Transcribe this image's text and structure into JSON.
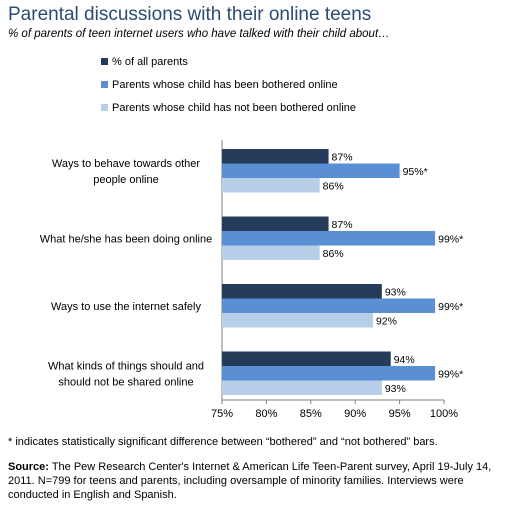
{
  "title": "Parental discussions with their online teens",
  "subtitle": "% of parents of teen internet users who have talked with their child about…",
  "footnote": "* indicates statistically significant difference between “bothered” and “not bothered” bars.",
  "source_label": "Source:",
  "source_text": "The Pew Research Center's Internet & American Life Teen-Parent survey, April 19-July 14, 2011. N=799 for teens and parents, including oversample of minority families. Interviews were conducted in English and Spanish.",
  "colors": {
    "title": "#2b4c72",
    "series": [
      "#253b5a",
      "#5b8fd4",
      "#b8cfe9"
    ]
  },
  "chart_data": {
    "type": "bar",
    "orientation": "horizontal",
    "categories": [
      [
        "Ways to behave towards other",
        "people online"
      ],
      [
        "What he/she has been doing online"
      ],
      [
        "Ways to use the internet safely"
      ],
      [
        "What kinds of things should and",
        "should not be shared online"
      ]
    ],
    "series": [
      {
        "name": "% of all parents",
        "values": [
          87,
          87,
          93,
          94
        ],
        "labels": [
          "87%",
          "87%",
          "93%",
          "94%"
        ]
      },
      {
        "name": "Parents whose child has been bothered online",
        "values": [
          95,
          99,
          99,
          99
        ],
        "labels": [
          "95%*",
          "99%*",
          "99%*",
          "99%*"
        ]
      },
      {
        "name": "Parents whose child has not been bothered online",
        "values": [
          86,
          86,
          92,
          93
        ],
        "labels": [
          "86%",
          "86%",
          "92%",
          "93%"
        ]
      }
    ],
    "xlim": [
      75,
      100
    ],
    "xticks": [
      75,
      80,
      85,
      90,
      95,
      100
    ],
    "xtick_labels": [
      "75%",
      "80%",
      "85%",
      "90%",
      "95%",
      "100%"
    ],
    "grid": false,
    "legend": "top"
  }
}
